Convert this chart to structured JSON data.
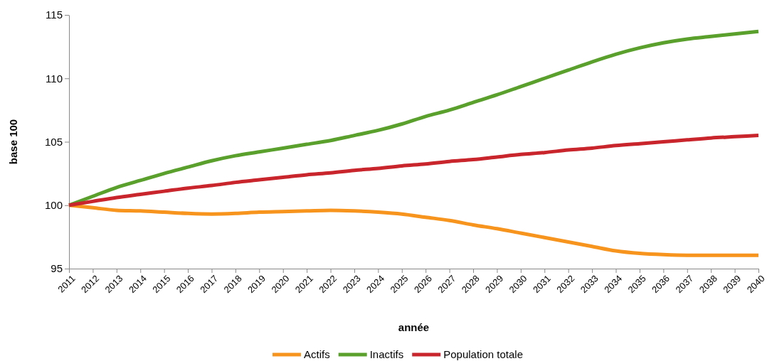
{
  "chart_data": {
    "type": "line",
    "xlabel": "année",
    "ylabel": "base 100",
    "categories": [
      "2011",
      "2012",
      "2013",
      "2014",
      "2015",
      "2016",
      "2017",
      "2018",
      "2019",
      "2020",
      "2021",
      "2022",
      "2023",
      "2024",
      "2025",
      "2026",
      "2027",
      "2028",
      "2029",
      "2030",
      "2031",
      "2032",
      "2033",
      "2034",
      "2035",
      "2036",
      "2037",
      "2038",
      "2039",
      "2040"
    ],
    "series": [
      {
        "name": "Actifs",
        "color": "#f7941d",
        "values": [
          100,
          99.8,
          99.6,
          99.55,
          99.45,
          99.35,
          99.3,
          99.35,
          99.45,
          99.5,
          99.55,
          99.6,
          99.55,
          99.45,
          99.3,
          99.05,
          98.8,
          98.45,
          98.15,
          97.8,
          97.45,
          97.1,
          96.75,
          96.4,
          96.2,
          96.1,
          96.05,
          96.05,
          96.05,
          96.05
        ]
      },
      {
        "name": "Inactifs",
        "color": "#5aa02c",
        "values": [
          100,
          100.7,
          101.4,
          101.95,
          102.5,
          103,
          103.5,
          103.9,
          104.2,
          104.5,
          104.8,
          105.1,
          105.5,
          105.9,
          106.4,
          107,
          107.5,
          108.1,
          108.7,
          109.35,
          110,
          110.65,
          111.3,
          111.9,
          112.4,
          112.8,
          113.1,
          113.3,
          113.5,
          113.7
        ]
      },
      {
        "name": "Population totale",
        "color": "#c9252c",
        "values": [
          100,
          100.3,
          100.6,
          100.85,
          101.1,
          101.35,
          101.55,
          101.8,
          102,
          102.2,
          102.4,
          102.55,
          102.75,
          102.9,
          103.1,
          103.25,
          103.45,
          103.6,
          103.8,
          104,
          104.15,
          104.35,
          104.5,
          104.7,
          104.85,
          105,
          105.15,
          105.3,
          105.4,
          105.5
        ]
      }
    ],
    "ylim": [
      95,
      115
    ],
    "yticks": [
      95,
      100,
      105,
      110,
      115
    ],
    "grid": false,
    "legend": "bottom",
    "marker": "none",
    "line_style": "solid"
  }
}
